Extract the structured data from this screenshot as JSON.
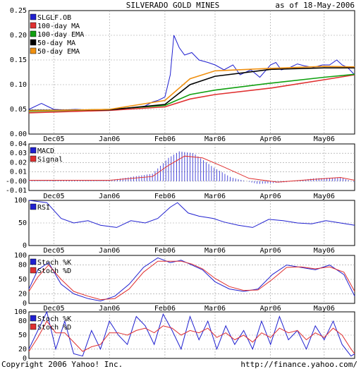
{
  "header": {
    "title": "SILVERADO GOLD MINES",
    "asof": "as of 18-May-2006"
  },
  "footer": {
    "copyright": "Copyright 2006 Yahoo! Inc.",
    "url": "http://finance.yahoo.com/"
  },
  "x_labels": [
    "Dec05",
    "Jan06",
    "Feb06",
    "Mar06",
    "Apr06",
    "May06"
  ],
  "colors": {
    "price": "#2020d0",
    "ma100": "#e03030",
    "ema100": "#10a010",
    "ma50": "#000000",
    "ema50": "#f09010",
    "macd": "#2020d0",
    "signal": "#e03030",
    "grid": "#999999"
  },
  "chart_data": [
    {
      "type": "line",
      "panel": "price",
      "ylim": [
        0,
        0.25
      ],
      "yticks": [
        "0.00",
        "0.05",
        "0.10",
        "0.15",
        "0.20",
        "0.25"
      ],
      "x_range": [
        "2005-11-17",
        "2006-05-18"
      ],
      "series": [
        {
          "name": "SLGLF.OB",
          "x": [
            "2005-11-17",
            "2005-11-24",
            "2005-11-28",
            "2005-12-01",
            "2005-12-07",
            "2005-12-13",
            "2005-12-20",
            "2005-12-27",
            "2006-01-04",
            "2006-01-11",
            "2006-01-17",
            "2006-01-21",
            "2006-01-25",
            "2006-01-28",
            "2006-02-01",
            "2006-02-04",
            "2006-02-06",
            "2006-02-09",
            "2006-02-12",
            "2006-02-16",
            "2006-02-20",
            "2006-02-25",
            "2006-03-01",
            "2006-03-06",
            "2006-03-11",
            "2006-03-15",
            "2006-03-21",
            "2006-03-26",
            "2006-04-01",
            "2006-04-04",
            "2006-04-07",
            "2006-04-12",
            "2006-04-16",
            "2006-04-20",
            "2006-04-25",
            "2006-04-30",
            "2006-05-04",
            "2006-05-08",
            "2006-05-11",
            "2006-05-14",
            "2006-05-18"
          ],
          "values": [
            0.05,
            0.062,
            0.055,
            0.05,
            0.049,
            0.05,
            0.049,
            0.048,
            0.05,
            0.052,
            0.054,
            0.057,
            0.065,
            0.068,
            0.075,
            0.12,
            0.2,
            0.175,
            0.16,
            0.165,
            0.15,
            0.145,
            0.14,
            0.13,
            0.14,
            0.12,
            0.13,
            0.115,
            0.14,
            0.145,
            0.13,
            0.135,
            0.142,
            0.138,
            0.135,
            0.14,
            0.14,
            0.15,
            0.14,
            0.135,
            0.12
          ]
        },
        {
          "name": "100-day MA",
          "x": [
            "2005-11-17",
            "2006-01-01",
            "2006-02-01",
            "2006-02-15",
            "2006-03-01",
            "2006-04-01",
            "2006-05-01",
            "2006-05-18"
          ],
          "values": [
            0.043,
            0.048,
            0.055,
            0.071,
            0.08,
            0.093,
            0.11,
            0.12
          ]
        },
        {
          "name": "100-day EMA",
          "x": [
            "2005-11-17",
            "2006-01-01",
            "2006-02-01",
            "2006-02-15",
            "2006-03-01",
            "2006-04-01",
            "2006-05-01",
            "2006-05-18"
          ],
          "values": [
            0.046,
            0.05,
            0.058,
            0.08,
            0.089,
            0.103,
            0.115,
            0.121
          ]
        },
        {
          "name": "50-day MA",
          "x": [
            "2005-11-17",
            "2006-01-01",
            "2006-02-01",
            "2006-02-15",
            "2006-03-01",
            "2006-04-01",
            "2006-05-01",
            "2006-05-18"
          ],
          "values": [
            0.048,
            0.049,
            0.06,
            0.1,
            0.117,
            0.131,
            0.134,
            0.134
          ]
        },
        {
          "name": "50-day EMA",
          "x": [
            "2005-11-17",
            "2006-01-01",
            "2006-02-01",
            "2006-02-15",
            "2006-03-01",
            "2006-04-01",
            "2006-05-01",
            "2006-05-18"
          ],
          "values": [
            0.047,
            0.05,
            0.068,
            0.112,
            0.128,
            0.133,
            0.137,
            0.136
          ]
        }
      ]
    },
    {
      "type": "line",
      "panel": "macd",
      "ylim": [
        -0.01,
        0.04
      ],
      "yticks": [
        "-0.01",
        "-0.00",
        "0.01",
        "0.02",
        "0.03",
        "0.04"
      ],
      "series": [
        {
          "name": "MACD",
          "x": [
            "2005-11-17",
            "2006-01-01",
            "2006-01-25",
            "2006-02-03",
            "2006-02-09",
            "2006-02-17",
            "2006-02-28",
            "2006-03-10",
            "2006-03-25",
            "2006-04-10",
            "2006-04-25",
            "2006-05-10",
            "2006-05-18"
          ],
          "values": [
            0.001,
            0.001,
            0.008,
            0.025,
            0.032,
            0.03,
            0.015,
            0.004,
            -0.003,
            -0.001,
            0.003,
            0.004,
            -0.001
          ]
        },
        {
          "name": "Signal",
          "x": [
            "2005-11-17",
            "2006-01-01",
            "2006-01-25",
            "2006-02-03",
            "2006-02-12",
            "2006-02-22",
            "2006-03-05",
            "2006-03-20",
            "2006-04-05",
            "2006-04-25",
            "2006-05-10",
            "2006-05-18"
          ],
          "values": [
            0.001,
            0.001,
            0.005,
            0.017,
            0.027,
            0.025,
            0.016,
            0.003,
            -0.001,
            0.002,
            0.004,
            0.001
          ]
        }
      ]
    },
    {
      "type": "line",
      "panel": "rsi",
      "ylim": [
        0,
        100
      ],
      "yticks": [
        "0",
        "50",
        "100"
      ],
      "series": [
        {
          "name": "RSI",
          "x": [
            "2005-11-17",
            "2005-11-27",
            "2005-12-05",
            "2005-12-12",
            "2005-12-20",
            "2005-12-27",
            "2006-01-05",
            "2006-01-13",
            "2006-01-21",
            "2006-01-28",
            "2006-02-04",
            "2006-02-08",
            "2006-02-14",
            "2006-02-20",
            "2006-02-28",
            "2006-03-06",
            "2006-03-14",
            "2006-03-22",
            "2006-03-31",
            "2006-04-08",
            "2006-04-16",
            "2006-04-24",
            "2006-05-02",
            "2006-05-10",
            "2006-05-18"
          ],
          "values": [
            100,
            95,
            60,
            50,
            55,
            45,
            40,
            55,
            50,
            60,
            85,
            95,
            72,
            65,
            60,
            52,
            45,
            40,
            58,
            55,
            50,
            48,
            55,
            50,
            45
          ]
        }
      ]
    },
    {
      "type": "line",
      "panel": "stoch_slow",
      "ylim": [
        0,
        100
      ],
      "yticks": [
        "0",
        "20",
        "50",
        "80",
        "100"
      ],
      "series": [
        {
          "name": "Stoch %K",
          "x": [
            "2005-11-17",
            "2005-11-22",
            "2005-11-28",
            "2005-12-05",
            "2005-12-12",
            "2005-12-20",
            "2005-12-27",
            "2006-01-04",
            "2006-01-12",
            "2006-01-20",
            "2006-01-28",
            "2006-02-04",
            "2006-02-10",
            "2006-02-16",
            "2006-02-22",
            "2006-03-01",
            "2006-03-09",
            "2006-03-17",
            "2006-03-25",
            "2006-04-02",
            "2006-04-10",
            "2006-04-18",
            "2006-04-26",
            "2006-05-04",
            "2006-05-12",
            "2006-05-18"
          ],
          "values": [
            30,
            70,
            85,
            40,
            20,
            10,
            5,
            15,
            40,
            75,
            95,
            85,
            90,
            80,
            70,
            45,
            30,
            25,
            30,
            60,
            80,
            75,
            70,
            80,
            60,
            15
          ]
        },
        {
          "name": "Stoch %D",
          "x": [
            "2005-11-17",
            "2005-11-22",
            "2005-11-28",
            "2005-12-05",
            "2005-12-12",
            "2005-12-20",
            "2005-12-27",
            "2006-01-04",
            "2006-01-12",
            "2006-01-20",
            "2006-01-28",
            "2006-02-04",
            "2006-02-10",
            "2006-02-16",
            "2006-02-22",
            "2006-03-01",
            "2006-03-09",
            "2006-03-17",
            "2006-03-25",
            "2006-04-02",
            "2006-04-10",
            "2006-04-18",
            "2006-04-26",
            "2006-05-04",
            "2006-05-12",
            "2006-05-18"
          ],
          "values": [
            25,
            55,
            80,
            50,
            25,
            15,
            8,
            10,
            30,
            65,
            88,
            88,
            88,
            82,
            72,
            52,
            35,
            27,
            28,
            50,
            75,
            76,
            72,
            76,
            65,
            25
          ]
        }
      ]
    },
    {
      "type": "line",
      "panel": "stoch_fast",
      "ylim": [
        0,
        100
      ],
      "yticks": [
        "0",
        "20",
        "50",
        "80",
        "100"
      ],
      "series": [
        {
          "name": "Stoch %K",
          "x": [
            "2005-11-17",
            "2005-11-22",
            "2005-11-27",
            "2005-12-02",
            "2005-12-07",
            "2005-12-12",
            "2005-12-17",
            "2005-12-22",
            "2005-12-27",
            "2006-01-01",
            "2006-01-06",
            "2006-01-11",
            "2006-01-16",
            "2006-01-21",
            "2006-01-26",
            "2006-01-31",
            "2006-02-05",
            "2006-02-10",
            "2006-02-15",
            "2006-02-20",
            "2006-02-25",
            "2006-03-02",
            "2006-03-07",
            "2006-03-12",
            "2006-03-17",
            "2006-03-22",
            "2006-03-27",
            "2006-04-01",
            "2006-04-06",
            "2006-04-11",
            "2006-04-16",
            "2006-04-21",
            "2006-04-26",
            "2006-05-01",
            "2006-05-06",
            "2006-05-11",
            "2006-05-16",
            "2006-05-18"
          ],
          "values": [
            20,
            60,
            100,
            20,
            80,
            10,
            5,
            60,
            20,
            80,
            50,
            30,
            90,
            70,
            30,
            95,
            60,
            20,
            90,
            40,
            80,
            20,
            70,
            30,
            60,
            20,
            80,
            30,
            90,
            40,
            60,
            20,
            70,
            40,
            80,
            30,
            5,
            10
          ]
        },
        {
          "name": "Stoch %D",
          "x": [
            "2005-11-17",
            "2005-11-22",
            "2005-11-27",
            "2005-12-02",
            "2005-12-07",
            "2005-12-12",
            "2005-12-17",
            "2005-12-22",
            "2005-12-27",
            "2006-01-01",
            "2006-01-06",
            "2006-01-11",
            "2006-01-16",
            "2006-01-21",
            "2006-01-26",
            "2006-01-31",
            "2006-02-05",
            "2006-02-10",
            "2006-02-15",
            "2006-02-20",
            "2006-02-25",
            "2006-03-02",
            "2006-03-07",
            "2006-03-12",
            "2006-03-17",
            "2006-03-22",
            "2006-03-27",
            "2006-04-01",
            "2006-04-06",
            "2006-04-11",
            "2006-04-16",
            "2006-04-21",
            "2006-04-26",
            "2006-05-01",
            "2006-05-06",
            "2006-05-11",
            "2006-05-16",
            "2006-05-18"
          ],
          "values": [
            15,
            45,
            80,
            55,
            55,
            35,
            15,
            25,
            30,
            55,
            55,
            50,
            60,
            65,
            55,
            70,
            65,
            50,
            60,
            55,
            65,
            45,
            55,
            40,
            50,
            35,
            55,
            45,
            65,
            55,
            60,
            40,
            55,
            45,
            65,
            50,
            20,
            10
          ]
        }
      ]
    }
  ]
}
